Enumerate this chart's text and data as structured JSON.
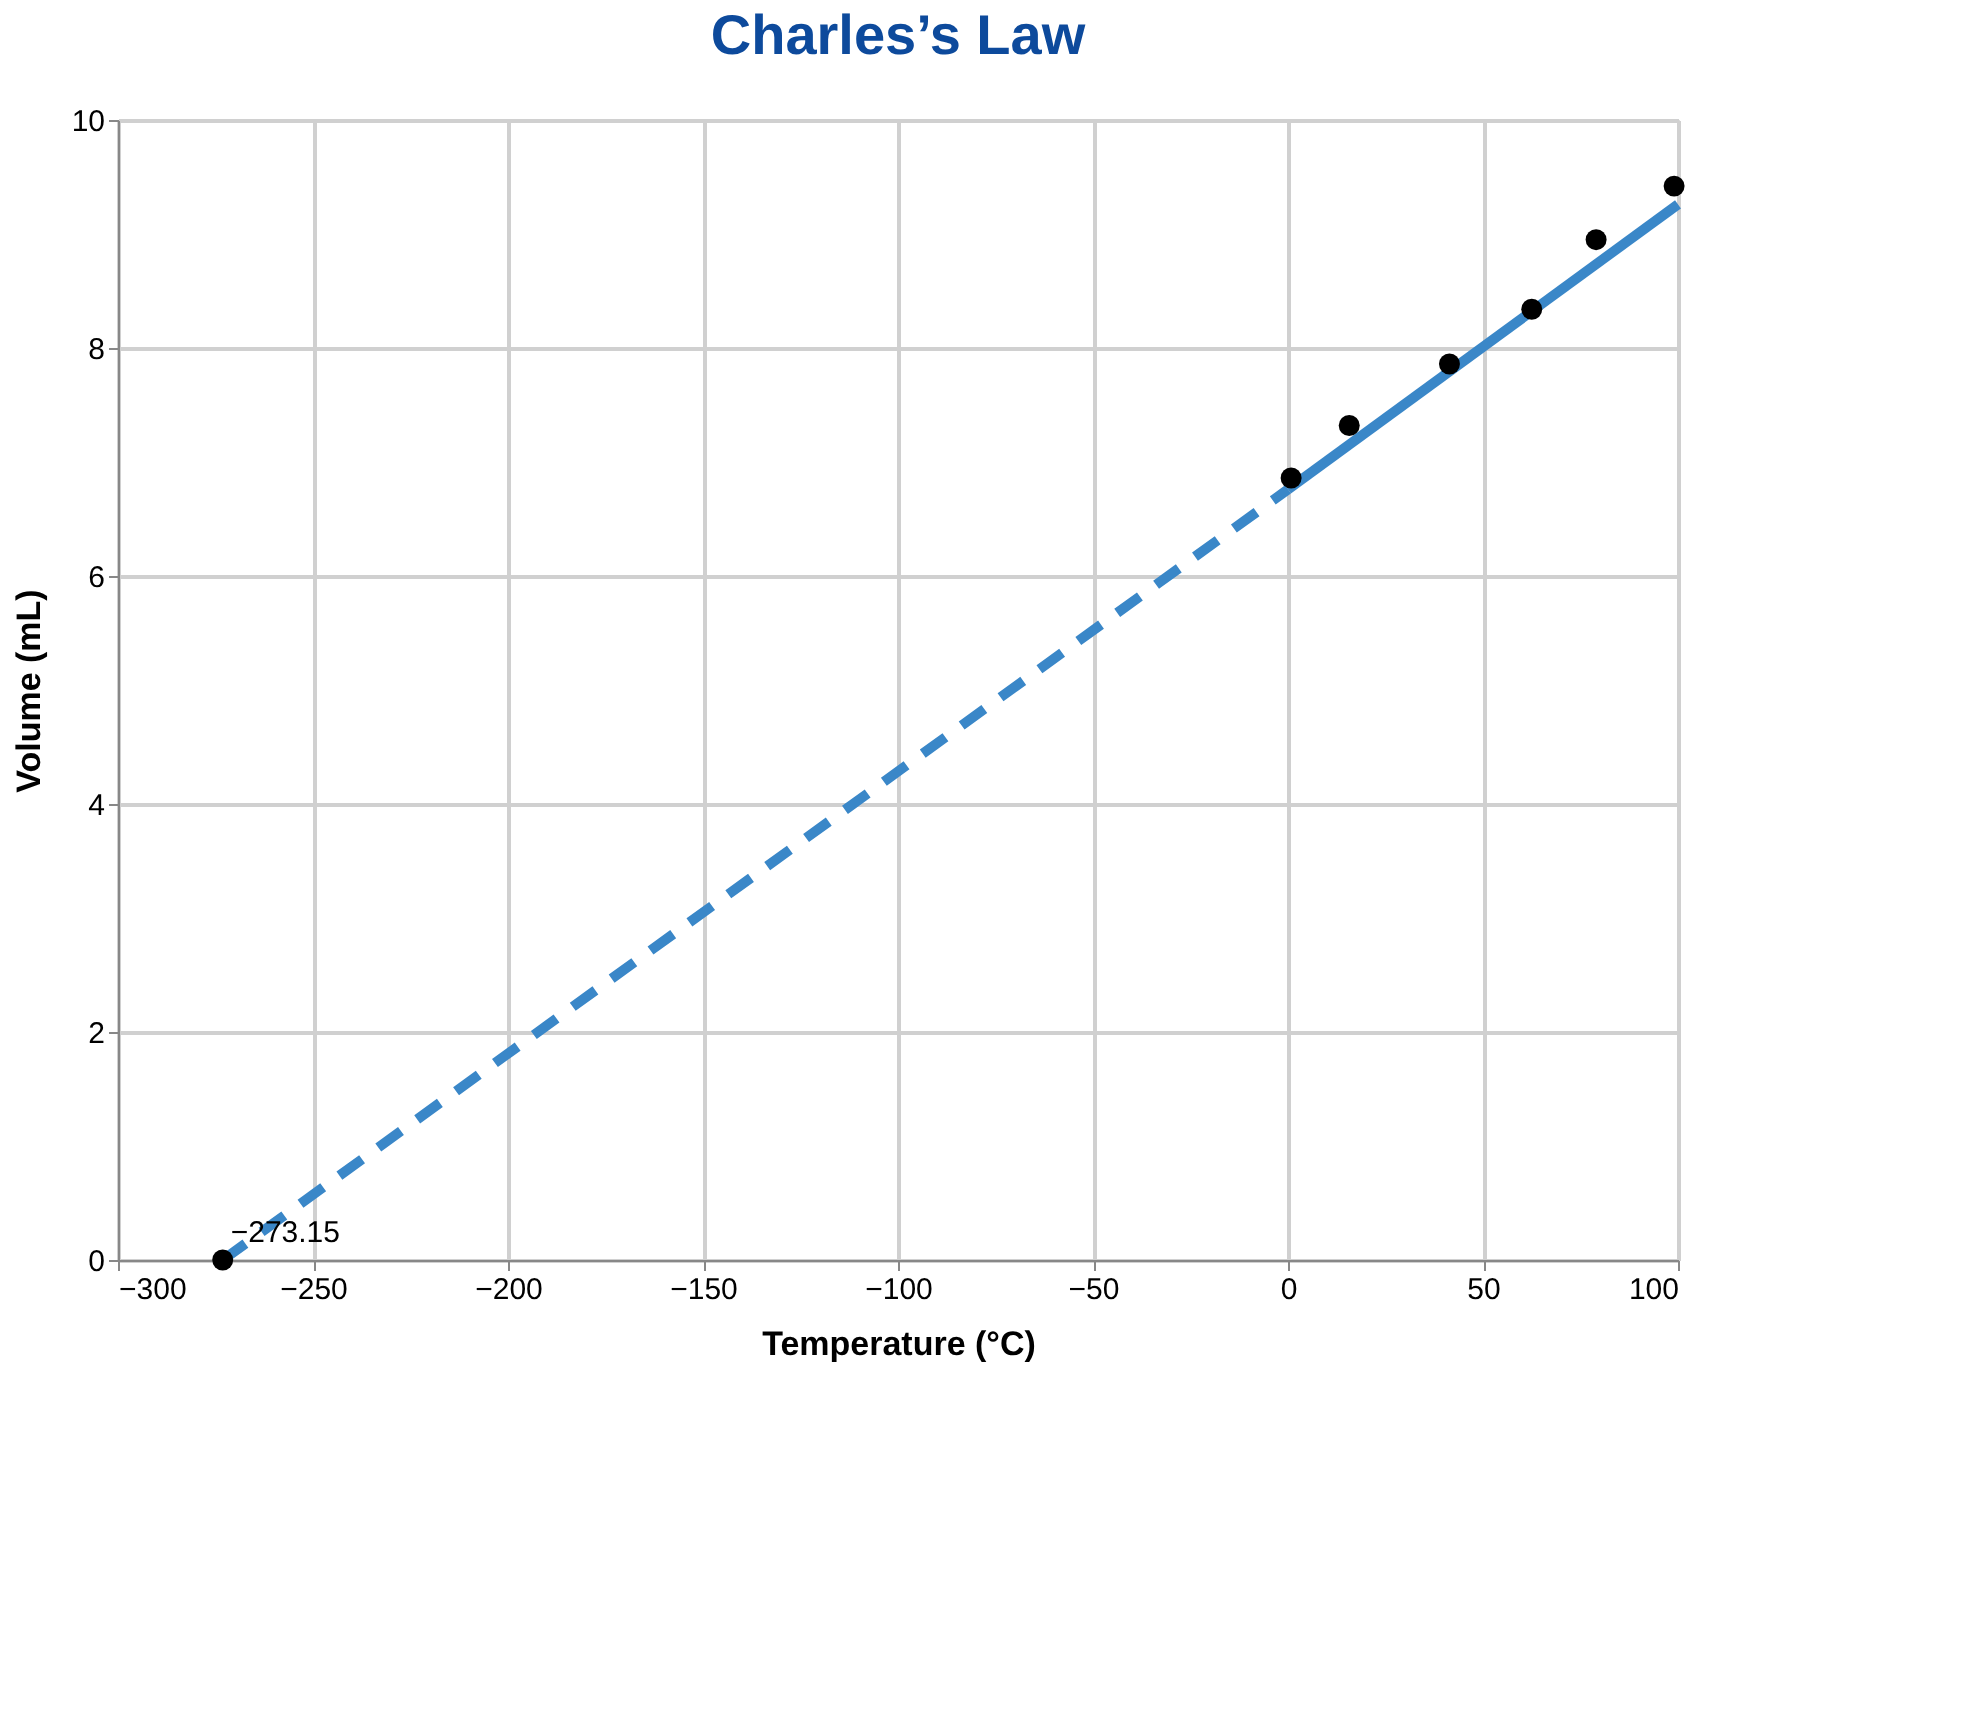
{
  "chart_data": {
    "type": "scatter",
    "title": "Charles’s Law",
    "xlabel": "Temperature (°C)",
    "ylabel": "Volume (mL)",
    "xlim": [
      -300,
      100
    ],
    "ylim": [
      0,
      10
    ],
    "xticks": [
      {
        "value": -300,
        "label": "−300"
      },
      {
        "value": -250,
        "label": "−250"
      },
      {
        "value": -200,
        "label": "−200"
      },
      {
        "value": -150,
        "label": "−150"
      },
      {
        "value": -100,
        "label": "−100"
      },
      {
        "value": -50,
        "label": "−50"
      },
      0,
      50,
      100
    ],
    "yticks": [
      0,
      2,
      4,
      6,
      8,
      10
    ],
    "grid": true,
    "series": [
      {
        "type": "line",
        "x": [
          -273.15,
          0
        ],
        "values": [
          0,
          6.76
        ],
        "color": "#3a87c8",
        "line_style": "dashed"
      },
      {
        "type": "line",
        "x": [
          0,
          100
        ],
        "values": [
          6.76,
          9.26
        ],
        "color": "#3a87c8",
        "line_style": "solid"
      },
      {
        "type": "scatter",
        "x": [
          -273.15,
          0.8,
          15.7,
          41.4,
          62.5,
          79,
          99
        ],
        "values": [
          0,
          6.86,
          7.32,
          7.86,
          8.34,
          8.95,
          9.42
        ],
        "color": "#000000",
        "marker": "circle"
      }
    ],
    "annotations": [
      {
        "text": "−273.15",
        "x": -273.15,
        "y": 0
      }
    ]
  }
}
